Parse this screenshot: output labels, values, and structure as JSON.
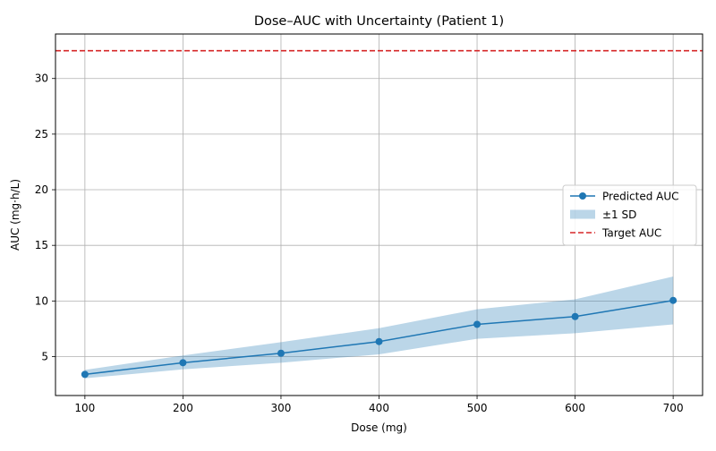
{
  "chart_data": {
    "type": "line",
    "title": "Dose–AUC with Uncertainty (Patient 1)",
    "xlabel": "Dose (mg)",
    "ylabel": "AUC (mg·h/L)",
    "xlim": [
      70,
      730
    ],
    "ylim": [
      1.5,
      34
    ],
    "x_ticks": [
      100,
      200,
      300,
      400,
      500,
      600,
      700
    ],
    "y_ticks": [
      5,
      10,
      15,
      20,
      25,
      30
    ],
    "grid": true,
    "legend_position": "center-right",
    "x": [
      100,
      200,
      300,
      400,
      500,
      600,
      700
    ],
    "series": [
      {
        "name": "Predicted AUC",
        "values": [
          3.4,
          4.45,
          5.3,
          6.35,
          7.9,
          8.6,
          10.05
        ],
        "color": "#1f77b4",
        "marker": "circle"
      }
    ],
    "band": {
      "name": "±1 SD",
      "lower": [
        3.05,
        3.85,
        4.45,
        5.2,
        6.6,
        7.1,
        7.9
      ],
      "upper": [
        3.8,
        5.1,
        6.3,
        7.55,
        9.25,
        10.15,
        12.2
      ],
      "color": "#1f77b4",
      "opacity": 0.3
    },
    "reference_line": {
      "name": "Target AUC",
      "value": 32.5,
      "color": "#d62728",
      "style": "dashed"
    }
  }
}
